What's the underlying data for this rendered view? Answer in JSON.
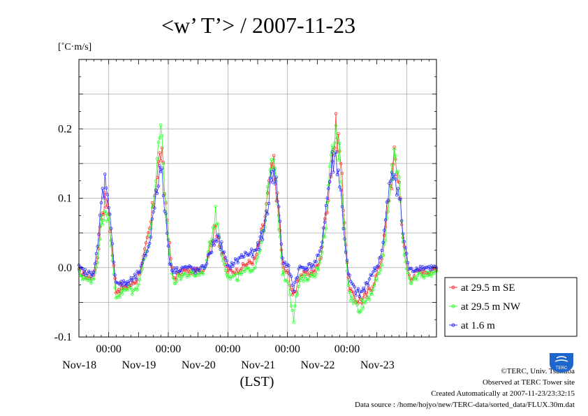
{
  "title": "<w’ T’> / 2007-11-23",
  "unit_label": "[˚C·m/s]",
  "xlabel": "(LST)",
  "footer": {
    "copyright": "©TERC, Univ. Tsukuba",
    "observed": "Observed at TERC Tower site",
    "created": "Created Automatically at 2007-11-23/23:32:15",
    "source": "Data source : /home/hojyo/new/TERC-data/sorted_data/FLUX.30m.dat",
    "logo_text": "TERC"
  },
  "legend": [
    {
      "label": "at 29.5 m SE",
      "color": "#ff3030"
    },
    {
      "label": "at 29.5 m NW",
      "color": "#30ff30"
    },
    {
      "label": "at 1.6 m",
      "color": "#3030ff"
    }
  ],
  "chart_data": {
    "type": "line",
    "title": "<w’ T’> / 2007-11-23",
    "ylabel": "[˚C·m/s]",
    "xlabel": "(LST)",
    "ylim": [
      -0.1,
      0.3
    ],
    "xlim_days": [
      0,
      6
    ],
    "x_units": "days from 2007-11-17 12:00 LST",
    "y_ticks": [
      -0.1,
      0.0,
      0.1,
      0.2
    ],
    "y_tick_labels": [
      "-0.1",
      "0.0",
      "0.1",
      "0.2"
    ],
    "x_tick_labels": [
      "00:00",
      "00:00",
      "00:00",
      "00:00",
      "00:00"
    ],
    "date_labels": [
      "Nov-18",
      "Nov-19",
      "Nov-20",
      "Nov-21",
      "Nov-22",
      "Nov-23"
    ],
    "grid": true,
    "legend_position": "right",
    "series": [
      {
        "name": "at 29.5 m SE",
        "color": "#ff3030",
        "keyframes": [
          [
            0,
            -0.005
          ],
          [
            0.15,
            -0.015
          ],
          [
            0.25,
            -0.01
          ],
          [
            0.32,
            0.02
          ],
          [
            0.38,
            0.08
          ],
          [
            0.45,
            0.1
          ],
          [
            0.5,
            0.08
          ],
          [
            0.55,
            0.03
          ],
          [
            0.62,
            -0.03
          ],
          [
            0.75,
            -0.03
          ],
          [
            0.85,
            -0.025
          ],
          [
            0.95,
            -0.02
          ],
          [
            1.05,
            0.0
          ],
          [
            1.2,
            0.06
          ],
          [
            1.3,
            0.13
          ],
          [
            1.38,
            0.17
          ],
          [
            1.45,
            0.1
          ],
          [
            1.52,
            0.03
          ],
          [
            1.58,
            -0.015
          ],
          [
            1.75,
            -0.005
          ],
          [
            1.85,
            -0.005
          ],
          [
            1.98,
            -0.005
          ],
          [
            2.1,
            -0.002
          ],
          [
            2.2,
            0.03
          ],
          [
            2.3,
            0.06
          ],
          [
            2.4,
            0.02
          ],
          [
            2.5,
            -0.005
          ],
          [
            2.65,
            -0.005
          ],
          [
            2.8,
            0.005
          ],
          [
            2.95,
            0.01
          ],
          [
            3.1,
            0.06
          ],
          [
            3.2,
            0.12
          ],
          [
            3.27,
            0.15
          ],
          [
            3.35,
            0.08
          ],
          [
            3.42,
            0.0
          ],
          [
            3.52,
            -0.01
          ],
          [
            3.6,
            -0.045
          ],
          [
            3.7,
            -0.01
          ],
          [
            3.8,
            -0.01
          ],
          [
            3.95,
            -0.005
          ],
          [
            4.05,
            0.01
          ],
          [
            4.15,
            0.08
          ],
          [
            4.25,
            0.16
          ],
          [
            4.32,
            0.2
          ],
          [
            4.38,
            0.17
          ],
          [
            4.45,
            0.08
          ],
          [
            4.52,
            -0.02
          ],
          [
            4.6,
            -0.045
          ],
          [
            4.7,
            -0.045
          ],
          [
            4.8,
            -0.045
          ],
          [
            4.9,
            -0.03
          ],
          [
            5.0,
            -0.01
          ],
          [
            5.1,
            0.02
          ],
          [
            5.2,
            0.1
          ],
          [
            5.3,
            0.16
          ],
          [
            5.38,
            0.12
          ],
          [
            5.45,
            0.03
          ],
          [
            5.55,
            -0.015
          ],
          [
            5.7,
            -0.005
          ],
          [
            5.85,
            -0.005
          ],
          [
            6.0,
            -0.003
          ]
        ]
      },
      {
        "name": "at 29.5 m NW",
        "color": "#30ff30",
        "keyframes": [
          [
            0,
            -0.008
          ],
          [
            0.15,
            -0.02
          ],
          [
            0.25,
            -0.015
          ],
          [
            0.32,
            0.015
          ],
          [
            0.38,
            0.07
          ],
          [
            0.45,
            0.09
          ],
          [
            0.5,
            0.07
          ],
          [
            0.55,
            0.02
          ],
          [
            0.62,
            -0.04
          ],
          [
            0.75,
            -0.035
          ],
          [
            0.85,
            -0.03
          ],
          [
            0.95,
            -0.035
          ],
          [
            1.05,
            -0.005
          ],
          [
            1.2,
            0.05
          ],
          [
            1.3,
            0.14
          ],
          [
            1.38,
            0.19
          ],
          [
            1.45,
            0.1
          ],
          [
            1.52,
            0.02
          ],
          [
            1.58,
            -0.02
          ],
          [
            1.75,
            -0.01
          ],
          [
            1.85,
            -0.01
          ],
          [
            1.98,
            -0.01
          ],
          [
            2.1,
            -0.005
          ],
          [
            2.2,
            0.035
          ],
          [
            2.3,
            0.08
          ],
          [
            2.4,
            0.02
          ],
          [
            2.5,
            -0.015
          ],
          [
            2.65,
            -0.015
          ],
          [
            2.8,
            -0.005
          ],
          [
            2.95,
            0.0
          ],
          [
            3.1,
            0.05
          ],
          [
            3.2,
            0.13
          ],
          [
            3.27,
            0.155
          ],
          [
            3.35,
            0.07
          ],
          [
            3.42,
            -0.01
          ],
          [
            3.52,
            -0.02
          ],
          [
            3.6,
            -0.07
          ],
          [
            3.7,
            -0.02
          ],
          [
            3.8,
            -0.015
          ],
          [
            3.95,
            -0.01
          ],
          [
            4.05,
            0.005
          ],
          [
            4.15,
            0.07
          ],
          [
            4.25,
            0.17
          ],
          [
            4.32,
            0.19
          ],
          [
            4.38,
            0.16
          ],
          [
            4.45,
            0.07
          ],
          [
            4.52,
            -0.03
          ],
          [
            4.6,
            -0.05
          ],
          [
            4.7,
            -0.055
          ],
          [
            4.8,
            -0.05
          ],
          [
            4.9,
            -0.035
          ],
          [
            5.0,
            -0.02
          ],
          [
            5.1,
            0.01
          ],
          [
            5.2,
            0.09
          ],
          [
            5.3,
            0.17
          ],
          [
            5.38,
            0.13
          ],
          [
            5.45,
            0.02
          ],
          [
            5.55,
            -0.025
          ],
          [
            5.7,
            -0.01
          ],
          [
            5.85,
            -0.01
          ],
          [
            6.0,
            -0.005
          ]
        ]
      },
      {
        "name": "at 1.6 m",
        "color": "#3030ff",
        "keyframes": [
          [
            0,
            0.0
          ],
          [
            0.15,
            -0.01
          ],
          [
            0.25,
            -0.005
          ],
          [
            0.32,
            0.03
          ],
          [
            0.38,
            0.1
          ],
          [
            0.45,
            0.13
          ],
          [
            0.5,
            0.1
          ],
          [
            0.55,
            0.04
          ],
          [
            0.62,
            -0.02
          ],
          [
            0.75,
            -0.025
          ],
          [
            0.85,
            -0.02
          ],
          [
            0.95,
            -0.015
          ],
          [
            1.05,
            0.0
          ],
          [
            1.2,
            0.04
          ],
          [
            1.3,
            0.12
          ],
          [
            1.38,
            0.14
          ],
          [
            1.45,
            0.08
          ],
          [
            1.52,
            0.01
          ],
          [
            1.58,
            -0.005
          ],
          [
            1.75,
            0.0
          ],
          [
            1.85,
            0.0
          ],
          [
            1.98,
            -0.005
          ],
          [
            2.1,
            0.0
          ],
          [
            2.2,
            0.02
          ],
          [
            2.3,
            0.045
          ],
          [
            2.4,
            0.03
          ],
          [
            2.5,
            0.0
          ],
          [
            2.65,
            0.01
          ],
          [
            2.8,
            0.02
          ],
          [
            2.95,
            0.02
          ],
          [
            3.1,
            0.05
          ],
          [
            3.2,
            0.11
          ],
          [
            3.27,
            0.15
          ],
          [
            3.35,
            0.09
          ],
          [
            3.42,
            0.01
          ],
          [
            3.52,
            0.0
          ],
          [
            3.6,
            -0.03
          ],
          [
            3.7,
            0.0
          ],
          [
            3.8,
            0.0
          ],
          [
            3.95,
            0.005
          ],
          [
            4.05,
            0.02
          ],
          [
            4.15,
            0.09
          ],
          [
            4.25,
            0.15
          ],
          [
            4.32,
            0.16
          ],
          [
            4.38,
            0.12
          ],
          [
            4.45,
            0.05
          ],
          [
            4.52,
            -0.01
          ],
          [
            4.6,
            -0.03
          ],
          [
            4.7,
            -0.04
          ],
          [
            4.8,
            -0.03
          ],
          [
            4.9,
            -0.01
          ],
          [
            5.0,
            0.0
          ],
          [
            5.1,
            0.03
          ],
          [
            5.2,
            0.11
          ],
          [
            5.3,
            0.14
          ],
          [
            5.38,
            0.1
          ],
          [
            5.45,
            0.04
          ],
          [
            5.55,
            -0.005
          ],
          [
            5.7,
            0.0
          ],
          [
            5.85,
            0.0
          ],
          [
            6.0,
            0.0
          ]
        ]
      }
    ]
  }
}
